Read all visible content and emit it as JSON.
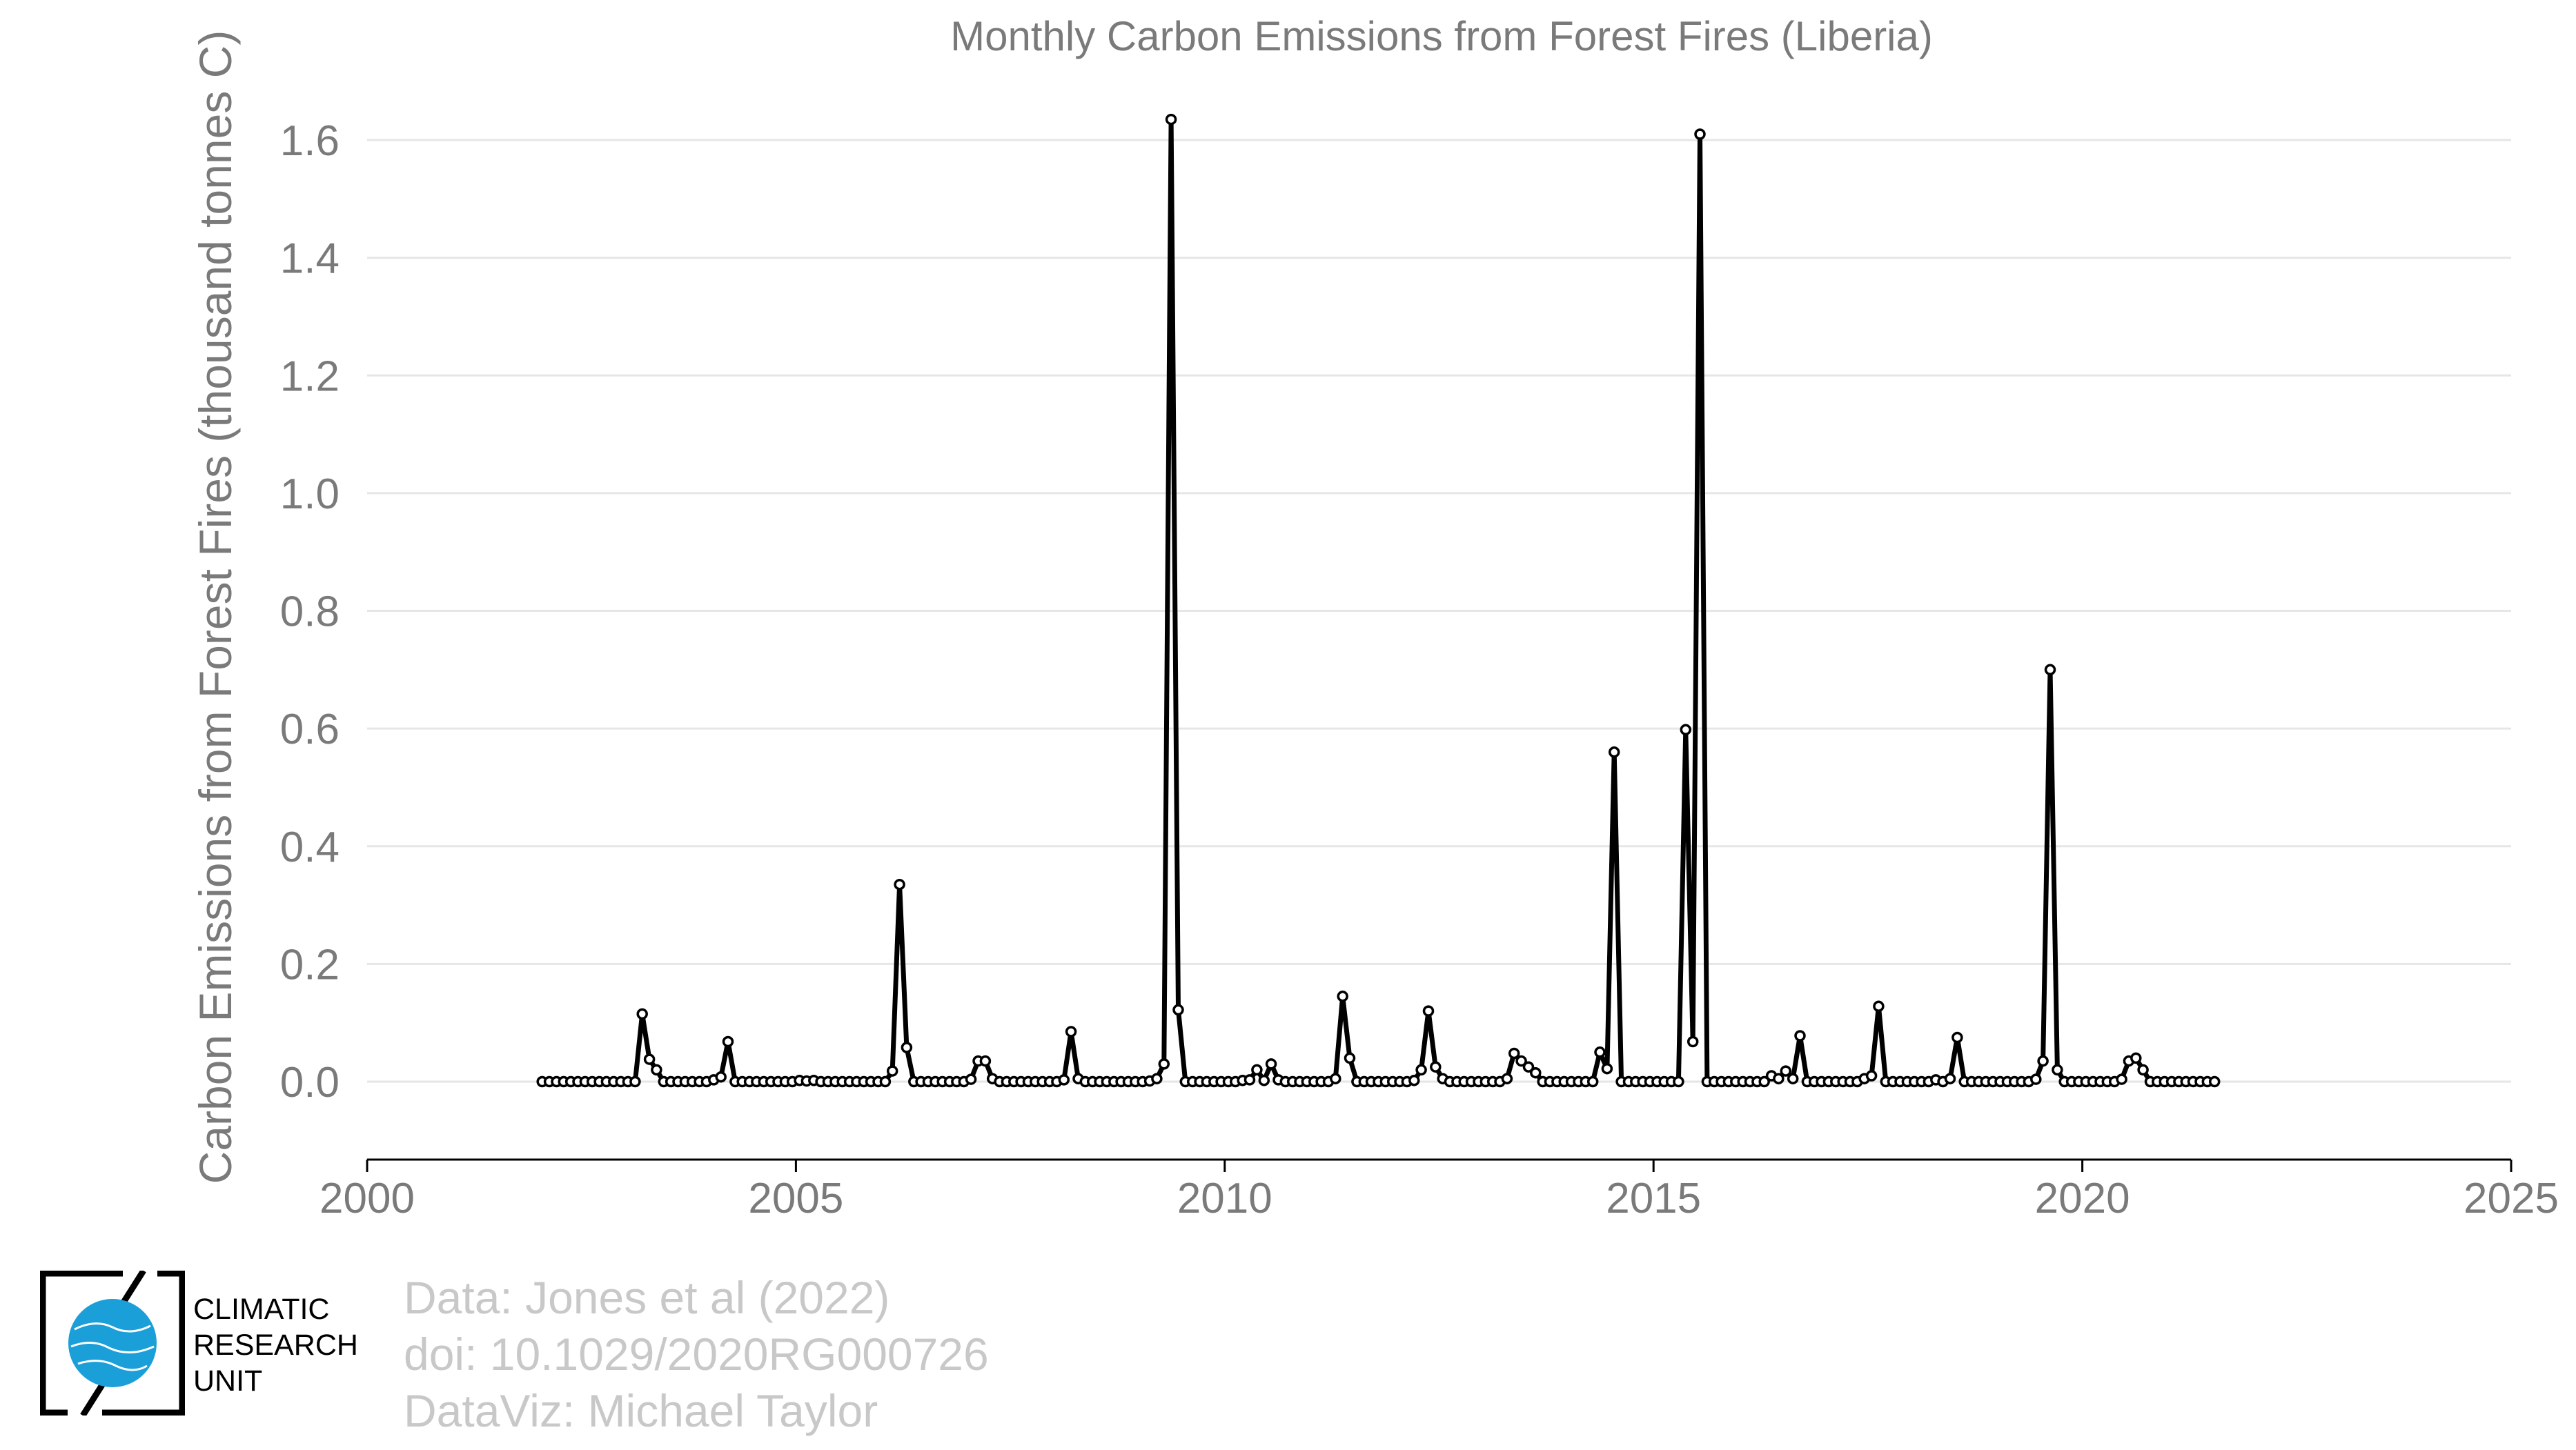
{
  "credits": {
    "line1": "Data: Jones et al (2022)",
    "line2": "doi: 10.1029/2020RG000726",
    "line3": "DataViz: Michael Taylor"
  },
  "logo": {
    "line1": "CLIMATIC",
    "line2": "RESEARCH",
    "line3": "UNIT",
    "globe_color": "#1a9fd9"
  },
  "chart_data": {
    "type": "line",
    "title": "Monthly Carbon Emissions from Forest Fires (Liberia)",
    "xlabel": "",
    "ylabel": "Carbon Emissions from Forest Fires (thousand tonnes C)",
    "xlim": [
      2000,
      2025
    ],
    "ylim": [
      -0.13,
      1.68
    ],
    "xticks": [
      "2000",
      "2005",
      "2010",
      "2015",
      "2020",
      "2025"
    ],
    "yticks": [
      "0.0",
      "0.2",
      "0.4",
      "0.6",
      "0.8",
      "1.0",
      "1.2",
      "1.4",
      "1.6"
    ],
    "grid": "horizontal",
    "line_color": "#000000",
    "marker": "open-circle",
    "start": "2002-01",
    "series": [
      {
        "values": [
          0,
          0,
          0,
          0,
          0,
          0,
          0,
          0,
          0,
          0,
          0,
          0,
          0,
          0,
          0.115,
          0.038,
          0.02,
          0,
          0,
          0,
          0,
          0,
          0,
          0,
          0.003,
          0.008,
          0.068,
          0,
          0,
          0,
          0,
          0,
          0,
          0,
          0,
          0,
          0.002,
          0.001,
          0.002,
          0,
          0,
          0,
          0,
          0,
          0,
          0,
          0,
          0,
          0,
          0.018,
          0.335,
          0.058,
          0,
          0,
          0,
          0,
          0,
          0,
          0,
          0,
          0.004,
          0.035,
          0.035,
          0.005,
          0,
          0,
          0,
          0,
          0,
          0,
          0,
          0,
          0,
          0.003,
          0.085,
          0.005,
          0,
          0,
          0,
          0,
          0,
          0,
          0,
          0,
          0,
          0.001,
          0.005,
          0.03,
          1.635,
          0.122,
          0,
          0,
          0,
          0,
          0,
          0,
          0,
          0,
          0.002,
          0.003,
          0.02,
          0.002,
          0.03,
          0.003,
          0,
          0,
          0,
          0,
          0,
          0,
          0,
          0.005,
          0.145,
          0.04,
          0,
          0,
          0,
          0,
          0,
          0,
          0,
          0,
          0.002,
          0.02,
          0.12,
          0.025,
          0.005,
          0,
          0,
          0,
          0,
          0,
          0,
          0,
          0,
          0.005,
          0.048,
          0.035,
          0.025,
          0.015,
          0,
          0,
          0,
          0,
          0,
          0,
          0,
          0,
          0.05,
          0.022,
          0.56,
          0,
          0,
          0,
          0,
          0,
          0,
          0,
          0,
          0,
          0.598,
          0.068,
          1.61,
          0,
          0,
          0,
          0,
          0,
          0,
          0,
          0,
          0,
          0.01,
          0.005,
          0.018,
          0.005,
          0.078,
          0,
          0,
          0,
          0,
          0,
          0,
          0,
          0,
          0.005,
          0.01,
          0.128,
          0,
          0,
          0,
          0,
          0,
          0,
          0,
          0.003,
          0,
          0.005,
          0.075,
          0,
          0,
          0,
          0,
          0,
          0,
          0,
          0,
          0,
          0,
          0.004,
          0.035,
          0.7,
          0.02,
          0,
          0,
          0,
          0,
          0,
          0,
          0,
          0,
          0.004,
          0.035,
          0.04,
          0.02,
          0,
          0,
          0,
          0,
          0,
          0,
          0,
          0,
          0,
          0
        ]
      }
    ]
  }
}
